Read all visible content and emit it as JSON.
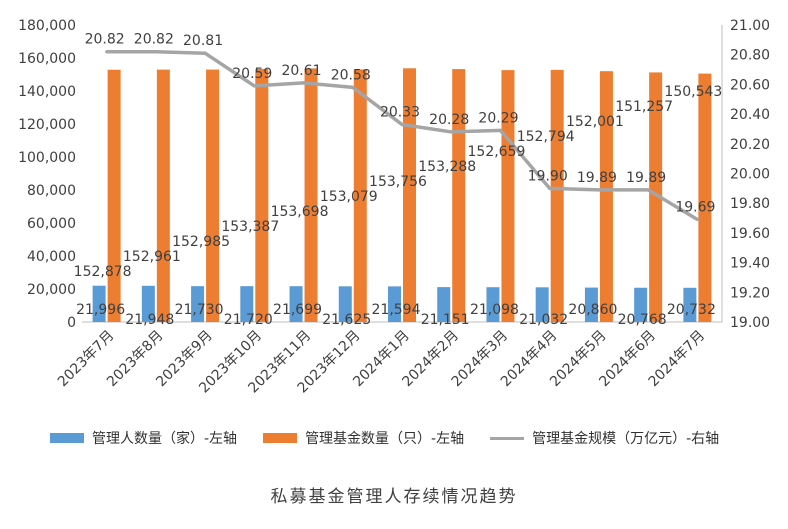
{
  "chart_data": {
    "type": "bar",
    "categories": [
      "2023年7月",
      "2023年8月",
      "2023年9月",
      "2023年10月",
      "2023年11月",
      "2023年12月",
      "2024年1月",
      "2024年2月",
      "2024年3月",
      "2024年4月",
      "2024年5月",
      "2024年6月",
      "2024年7月"
    ],
    "series": [
      {
        "name": "管理人数量（家）-左轴",
        "type": "bar",
        "axis": "left",
        "color": "#5B9BD5",
        "values": [
          21996,
          21948,
          21730,
          21720,
          21699,
          21625,
          21594,
          21151,
          21098,
          21032,
          20860,
          20768,
          20732
        ],
        "labels": [
          "21,996",
          "21,948",
          "21,730",
          "21,720",
          "21,699",
          "21,625",
          "21,594",
          "21,151",
          "21,098",
          "21,032",
          "20,860",
          "20,768",
          "20,732"
        ]
      },
      {
        "name": "管理基金数量（只）-左轴",
        "type": "bar",
        "axis": "left",
        "color": "#ED7D31",
        "values": [
          152878,
          152961,
          152985,
          153387,
          153698,
          153079,
          153756,
          153288,
          152659,
          152794,
          152001,
          151257,
          150543
        ],
        "labels": [
          "152,878",
          "152,961",
          "152,985",
          "153,387",
          "153,698",
          "153,079",
          "153,756",
          "153,288",
          "152,659",
          "152,794",
          "152,001",
          "151,257",
          "150,543"
        ]
      },
      {
        "name": "管理基金规模（万亿元）-右轴",
        "type": "line",
        "axis": "right",
        "color": "#A5A5A5",
        "values": [
          20.82,
          20.82,
          20.81,
          20.59,
          20.61,
          20.58,
          20.33,
          20.28,
          20.29,
          19.9,
          19.89,
          19.89,
          19.69
        ],
        "labels": [
          "20.82",
          "20.82",
          "20.81",
          "20.59",
          "20.61",
          "20.58",
          "20.33",
          "20.28",
          "20.29",
          "19.90",
          "19.89",
          "19.89",
          "19.69"
        ]
      }
    ],
    "left_axis": {
      "ylim": [
        0,
        180000
      ],
      "ticks": [
        "0",
        "20,000",
        "40,000",
        "60,000",
        "80,000",
        "100,000",
        "120,000",
        "140,000",
        "160,000",
        "180,000"
      ]
    },
    "right_axis": {
      "ylim": [
        19.0,
        21.0
      ],
      "ticks": [
        "19.00",
        "19.20",
        "19.40",
        "19.60",
        "19.80",
        "20.00",
        "20.20",
        "20.40",
        "20.60",
        "20.80",
        "21.00"
      ]
    },
    "grid": false,
    "legend_position": "bottom",
    "caption": "私募基金管理人存续情况趋势"
  }
}
